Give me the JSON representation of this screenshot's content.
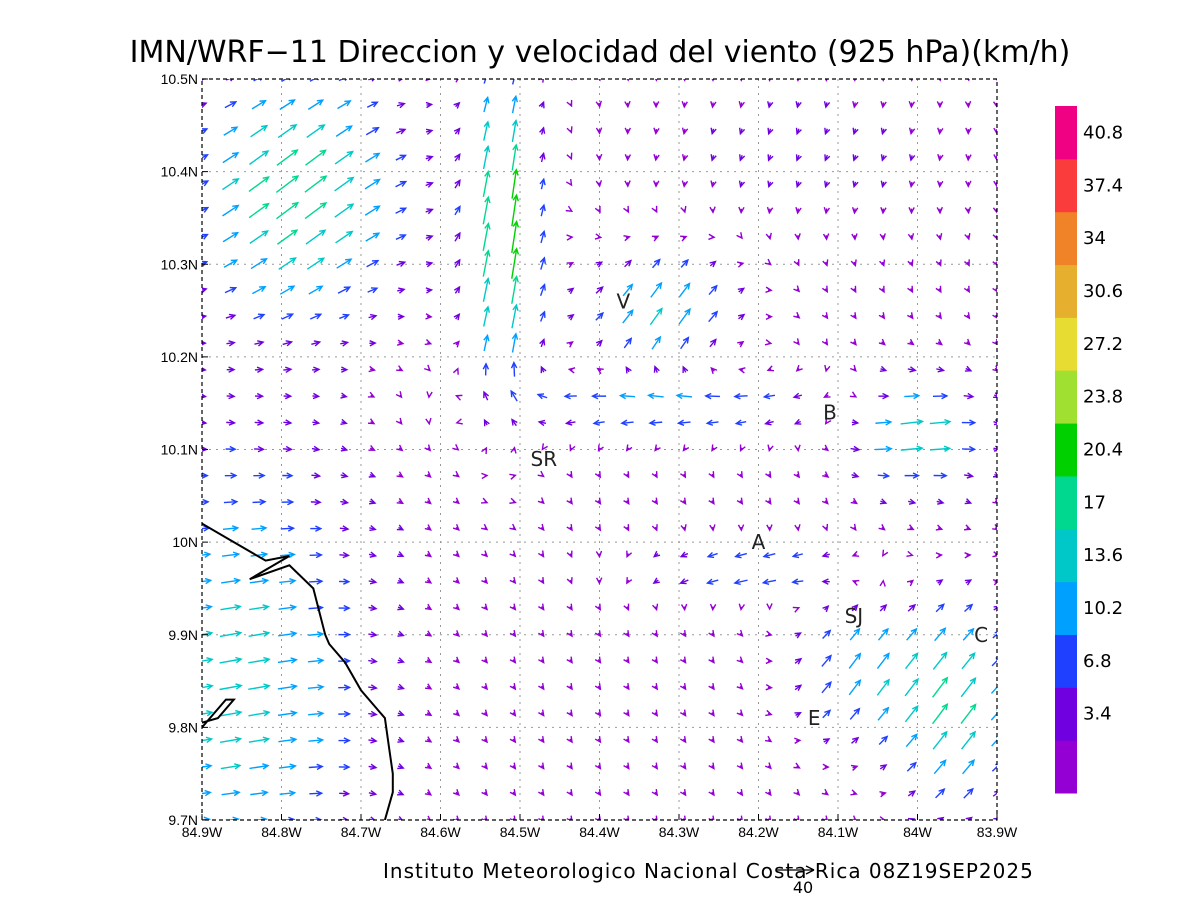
{
  "title": "IMN/WRF−11 Direccion y velocidad del viento (925 hPa)(km/h)",
  "footer": "Instituto Meteorologico Nacional Costa Rica 08Z19SEP2025",
  "reference_vector": {
    "label": "40",
    "speed_kmh": 40
  },
  "map_extent": {
    "lon_west": -84.9,
    "lon_east": -83.9,
    "lat_south": 9.7,
    "lat_north": 10.5
  },
  "axes": {
    "x_ticks": [
      "84.9W",
      "84.8W",
      "84.7W",
      "84.6W",
      "84.5W",
      "84.4W",
      "84.3W",
      "84.2W",
      "84.1W",
      "84W",
      "83.9W"
    ],
    "y_ticks": [
      "9.7N",
      "9.8N",
      "9.9N",
      "10N",
      "10.1N",
      "10.2N",
      "10.3N",
      "10.4N",
      "10.5N"
    ],
    "grid": "dotted"
  },
  "colorbar": {
    "labels": [
      "3.4",
      "6.8",
      "10.2",
      "13.6",
      "17",
      "20.4",
      "23.8",
      "27.2",
      "30.6",
      "34",
      "37.4",
      "40.8"
    ],
    "colors": [
      "#9400d3",
      "#7000e0",
      "#2040ff",
      "#00a0ff",
      "#00c8c8",
      "#00d890",
      "#00d000",
      "#a0e030",
      "#e6dc32",
      "#e6af2d",
      "#f08228",
      "#fa3c3c",
      "#f00082"
    ]
  },
  "cities": [
    {
      "label": "V",
      "lon": -84.37,
      "lat": 10.26
    },
    {
      "label": "B",
      "lon": -84.11,
      "lat": 10.14
    },
    {
      "label": "SR",
      "lon": -84.47,
      "lat": 10.09
    },
    {
      "label": "A",
      "lon": -84.2,
      "lat": 10.0
    },
    {
      "label": "SJ",
      "lon": -84.08,
      "lat": 9.92
    },
    {
      "label": "C",
      "lon": -83.92,
      "lat": 9.9
    },
    {
      "label": "E",
      "lon": -84.13,
      "lat": 9.81
    }
  ],
  "coastline": [
    [
      [
        -84.9,
        10.02
      ],
      [
        -84.86,
        10.0
      ],
      [
        -84.82,
        9.98
      ],
      [
        -84.79,
        9.985
      ],
      [
        -84.84,
        9.96
      ],
      [
        -84.79,
        9.975
      ],
      [
        -84.76,
        9.95
      ],
      [
        -84.745,
        9.9
      ],
      [
        -84.74,
        9.89
      ],
      [
        -84.72,
        9.87
      ],
      [
        -84.7,
        9.84
      ],
      [
        -84.67,
        9.81
      ],
      [
        -84.665,
        9.78
      ],
      [
        -84.66,
        9.75
      ],
      [
        -84.66,
        9.73
      ],
      [
        -84.67,
        9.7
      ]
    ],
    [
      [
        -84.9,
        9.8
      ],
      [
        -84.87,
        9.83
      ],
      [
        -84.86,
        9.83
      ],
      [
        -84.88,
        9.81
      ],
      [
        -84.9,
        9.805
      ]
    ]
  ],
  "wind_field": {
    "units": "km/h",
    "lon_start": -84.9,
    "lon_step": 0.0357,
    "lon_count": 29,
    "lat_start": 9.7,
    "lat_step": 0.0286,
    "lat_count": 29
  }
}
